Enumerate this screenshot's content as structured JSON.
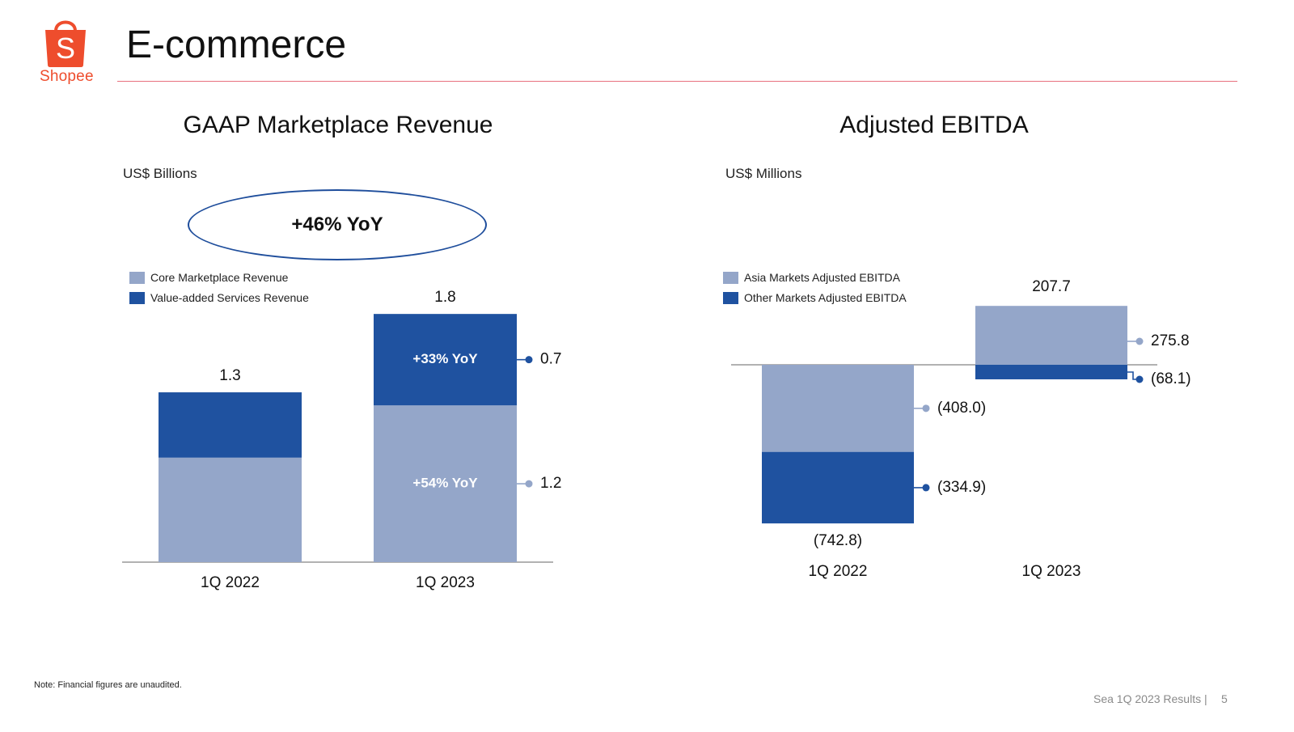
{
  "header": {
    "title": "E-commerce",
    "brand": "Shopee",
    "logo_letter": "S",
    "brand_color": "#ee4d2d",
    "rule_color": "#e8707e"
  },
  "colors": {
    "light_series": "#94a6c9",
    "dark_series": "#1f52a0",
    "axis": "#999999"
  },
  "chart_data": [
    {
      "type": "bar",
      "stacked": true,
      "title": "GAAP Marketplace Revenue",
      "unit": "US$ Billions",
      "callout": "+46% YoY",
      "categories": [
        "1Q 2022",
        "1Q 2023"
      ],
      "series": [
        {
          "name": "Core Marketplace Revenue",
          "color": "#94a6c9",
          "values": [
            0.8,
            1.2
          ]
        },
        {
          "name": "Value-added Services Revenue",
          "color": "#1f52a0",
          "values": [
            0.5,
            0.7
          ]
        }
      ],
      "totals": [
        "1.3",
        "1.8"
      ],
      "segment_labels": {
        "1Q 2023": [
          "+54% YoY",
          "+33% YoY"
        ]
      },
      "side_labels": [
        "1.2",
        "0.7"
      ],
      "legend": "top-left",
      "grid": false
    },
    {
      "type": "bar",
      "stacked": true,
      "title": "Adjusted EBITDA",
      "unit": "US$ Millions",
      "categories": [
        "1Q 2022",
        "1Q 2023"
      ],
      "series": [
        {
          "name": "Asia Markets Adjusted EBITDA",
          "color": "#94a6c9",
          "values": [
            -408.0,
            275.8
          ]
        },
        {
          "name": "Other Markets Adjusted EBITDA",
          "color": "#1f52a0",
          "values": [
            -334.9,
            -68.1
          ]
        }
      ],
      "totals": [
        "(742.8)",
        "207.7"
      ],
      "side_labels": {
        "1Q 2022": [
          "(408.0)",
          "(334.9)"
        ],
        "1Q 2023": [
          "275.8",
          "(68.1)"
        ]
      },
      "legend": "top-left",
      "grid": false
    }
  ],
  "footer": {
    "note": "Note: Financial figures are unaudited.",
    "source": "Sea 1Q 2023 Results |",
    "page": "5"
  }
}
